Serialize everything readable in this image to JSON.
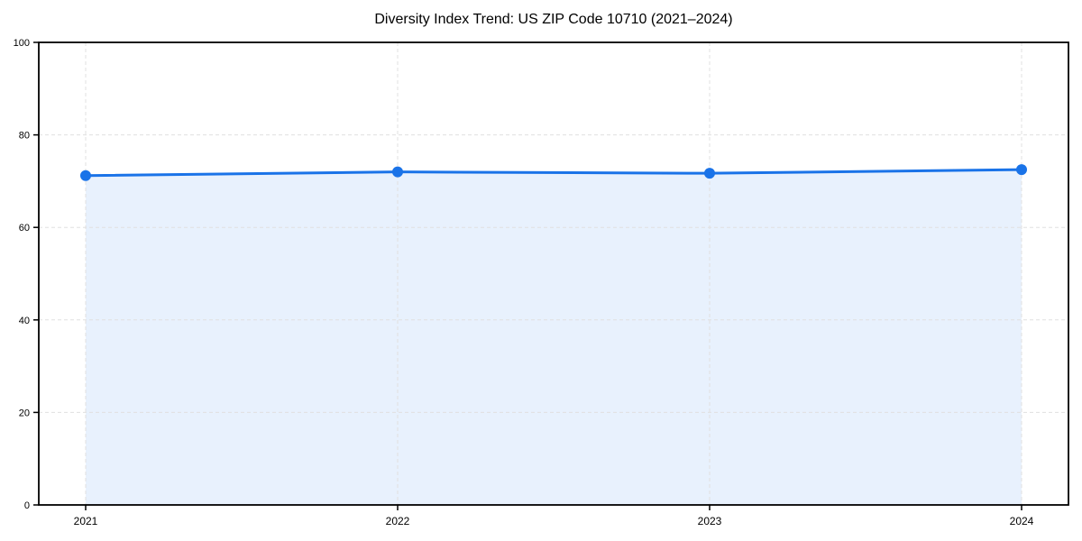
{
  "chart_data": {
    "type": "area",
    "title": "Diversity Index Trend: US ZIP Code 10710 (2021–2024)",
    "categories": [
      "2021",
      "2022",
      "2023",
      "2024"
    ],
    "series": [
      {
        "name": "Diversity Index",
        "values": [
          71.2,
          72.0,
          71.7,
          72.5
        ]
      }
    ],
    "xlabel": "",
    "ylabel": "",
    "ylim": [
      0,
      100
    ],
    "yticks": [
      0,
      20,
      40,
      60,
      80,
      100
    ],
    "grid": true,
    "grid_style": "dashed",
    "legend_position": "none",
    "colors": {
      "line": "#1a73e8",
      "fill": "#1a73e8",
      "fill_opacity": 0.1,
      "grid": "#e0e0e0",
      "spine": "#000000",
      "text": "#000000",
      "background": "#ffffff"
    },
    "marker": "circle",
    "marker_radius": 6,
    "line_width": 3
  }
}
